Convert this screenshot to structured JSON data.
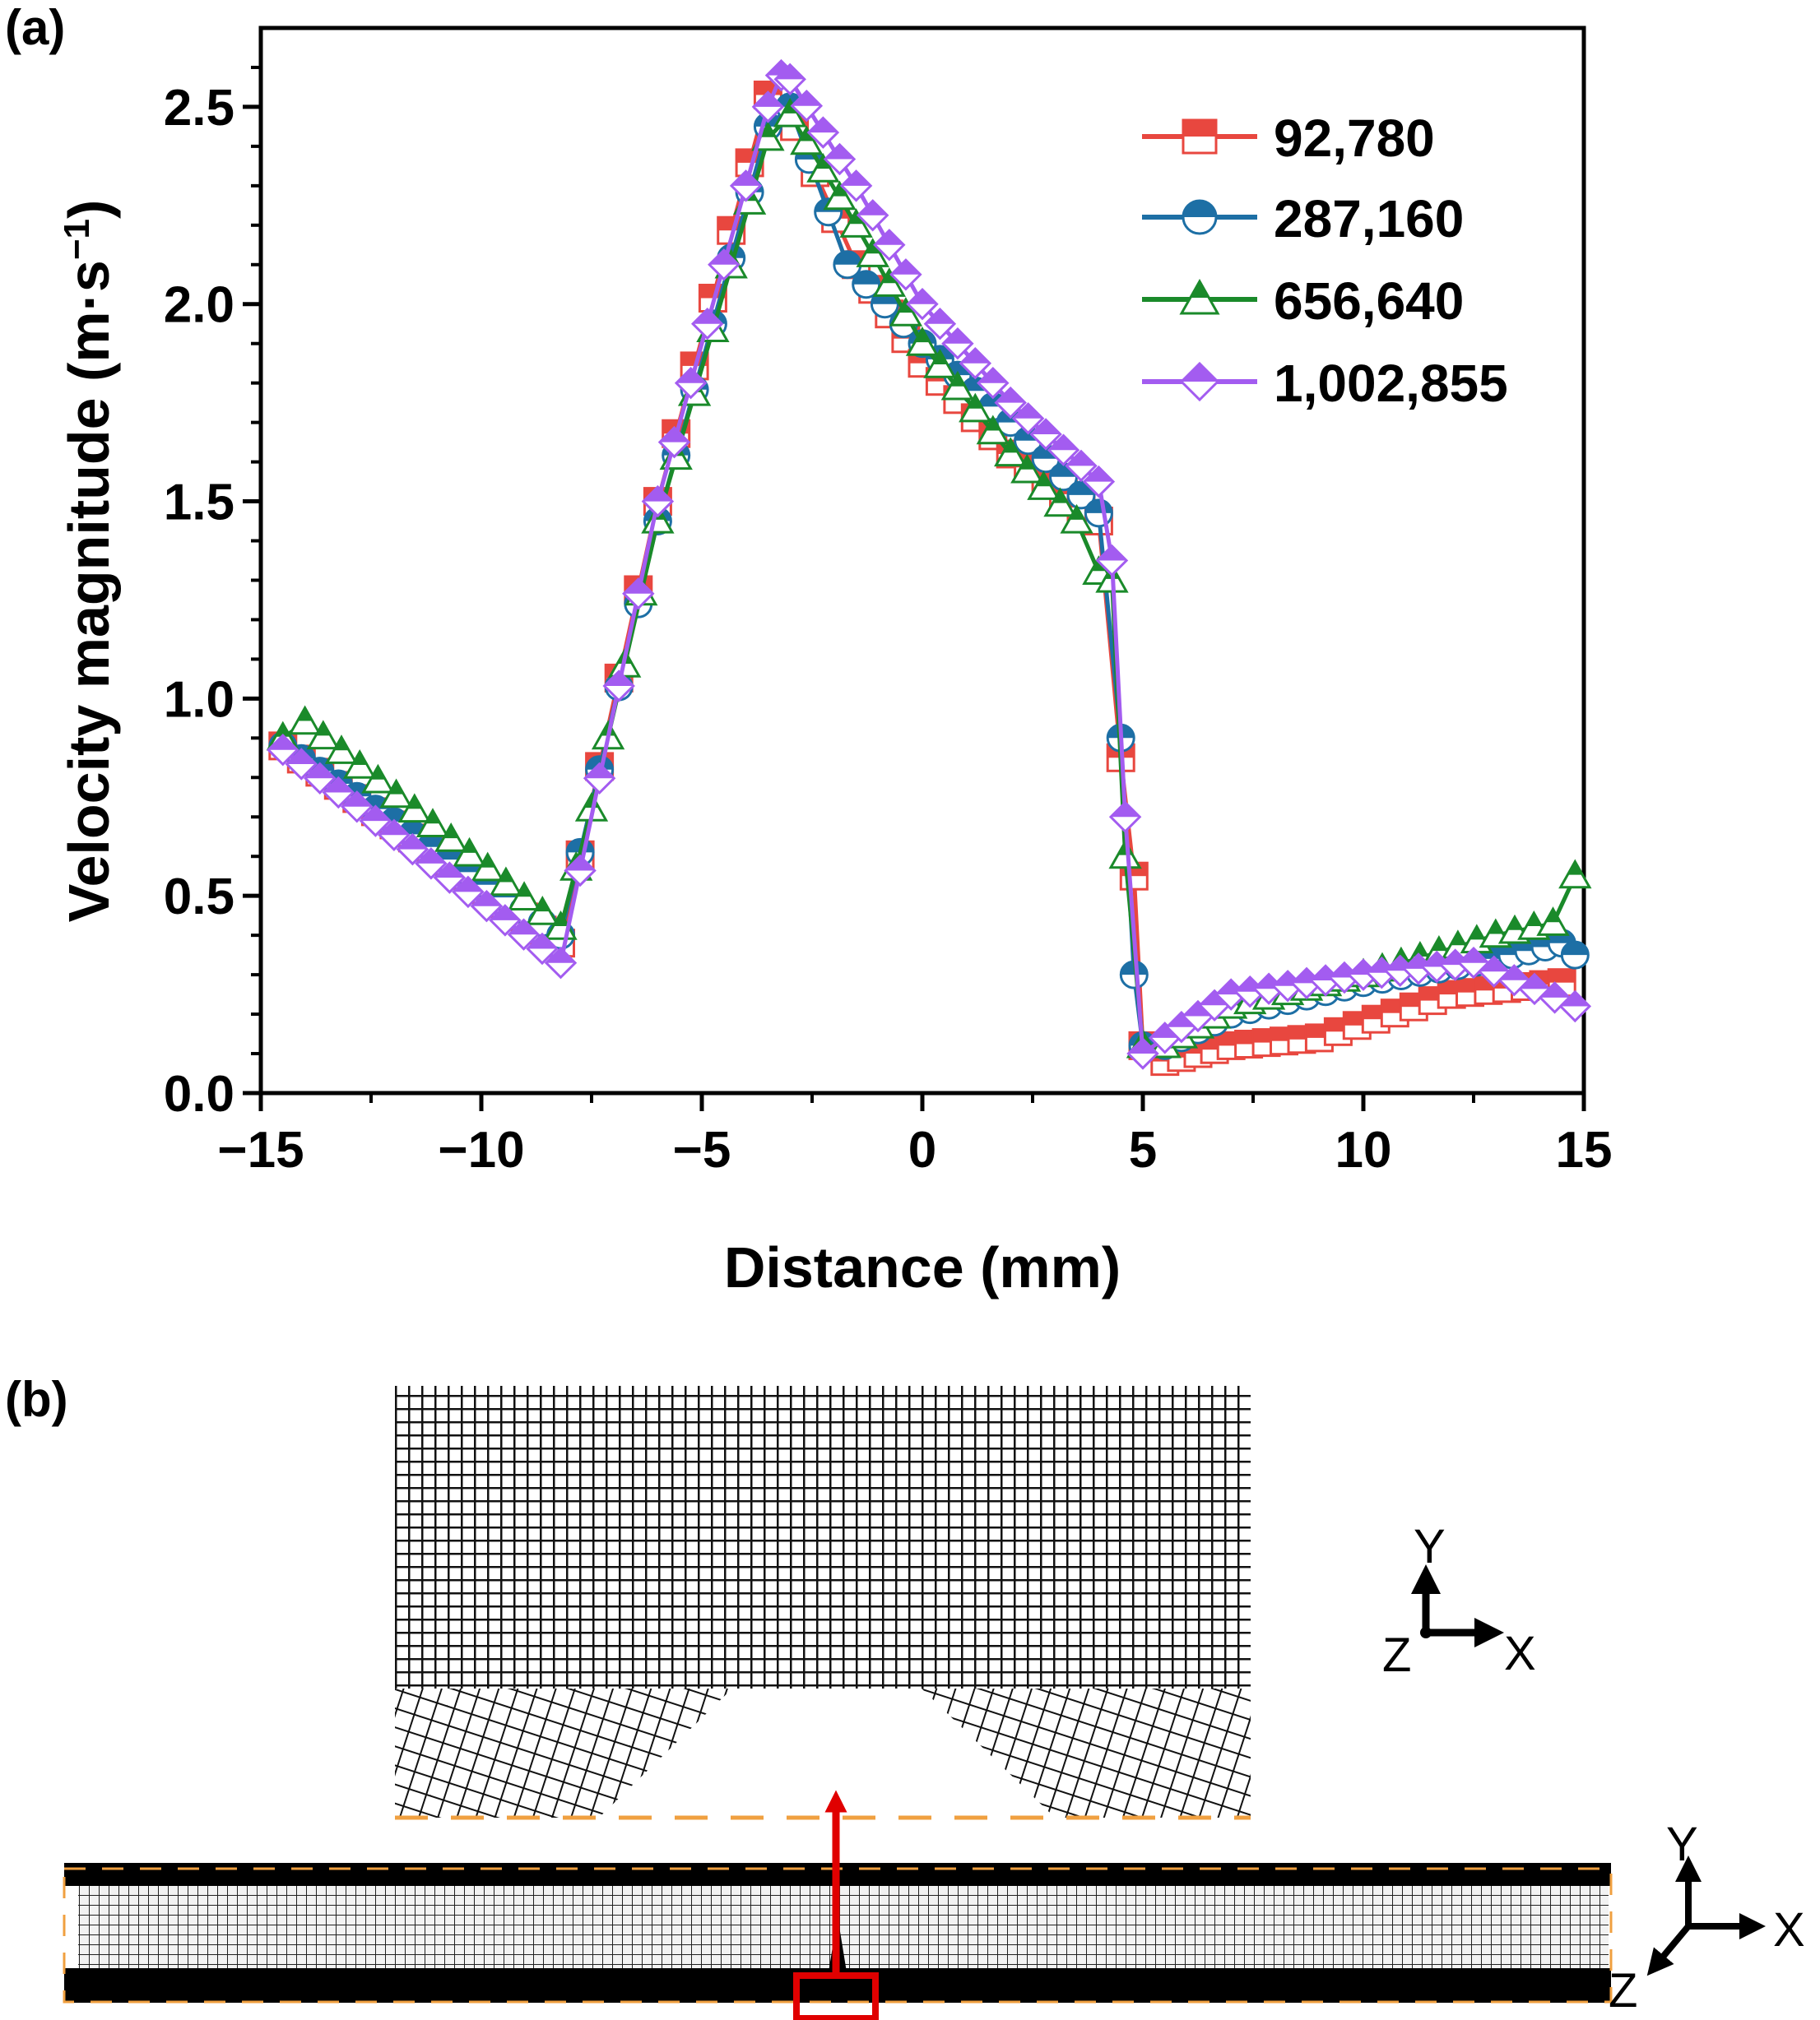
{
  "panel_a": {
    "label": "(a)"
  },
  "panel_b": {
    "label": "(b)",
    "axes_upper": {
      "y": "Y",
      "x": "X",
      "z": "Z"
    },
    "axes_lower": {
      "y": "Y",
      "x": "X",
      "z": "Z"
    },
    "colors": {
      "mesh": "#111111",
      "boundary": "#f0a040",
      "highlight": "#e00000"
    }
  },
  "chart_data": {
    "type": "line",
    "xlabel": "Distance (mm)",
    "ylabel_main": "Velocity magnitude (m·s",
    "ylabel_sup": "−1",
    "ylabel_close": ")",
    "xlim": [
      -15,
      15
    ],
    "ylim": [
      0,
      2.7
    ],
    "xticks": [
      -15,
      -10,
      -5,
      0,
      5,
      10,
      15
    ],
    "xtick_labels": [
      "−15",
      "−10",
      "−5",
      "0",
      "5",
      "10",
      "15"
    ],
    "yticks": [
      0.0,
      0.5,
      1.0,
      1.5,
      2.0,
      2.5
    ],
    "ytick_labels": [
      "0.0",
      "0.5",
      "1.0",
      "1.5",
      "2.0",
      "2.5"
    ],
    "legend_position": "top-right",
    "series": [
      {
        "name": "92,780",
        "color": "#e8473f",
        "marker": "square",
        "x": [
          -14.5,
          -8.2,
          -6.0,
          -3.5,
          -2.9,
          -1.5,
          0,
          2,
          4,
          4.5,
          4.8,
          5.0,
          5.5,
          7,
          9,
          12,
          14.5
        ],
        "y": [
          0.88,
          0.38,
          1.5,
          2.53,
          2.45,
          2.1,
          1.85,
          1.62,
          1.45,
          0.85,
          0.55,
          0.12,
          0.08,
          0.12,
          0.14,
          0.25,
          0.28
        ]
      },
      {
        "name": "287,160",
        "color": "#1d6fa5",
        "marker": "circle",
        "x": [
          -14.5,
          -8.2,
          -6.0,
          -3.5,
          -3.0,
          -1.7,
          0,
          2,
          4,
          4.5,
          4.8,
          5.0,
          5.5,
          7,
          10,
          13,
          14.5,
          14.8
        ],
        "y": [
          0.88,
          0.4,
          1.45,
          2.45,
          2.5,
          2.1,
          1.9,
          1.7,
          1.47,
          0.9,
          0.3,
          0.12,
          0.12,
          0.2,
          0.28,
          0.34,
          0.38,
          0.35
        ]
      },
      {
        "name": "656,640",
        "color": "#1a8a2a",
        "marker": "triangle",
        "x": [
          -14.5,
          -14,
          -8.2,
          -7.5,
          -6.0,
          -3.5,
          -3.0,
          -1.5,
          0,
          2,
          3.5,
          4.0,
          4.3,
          4.6,
          5.0,
          5.5,
          7,
          10,
          13,
          14.3,
          14.8
        ],
        "y": [
          0.9,
          0.94,
          0.42,
          0.72,
          1.45,
          2.42,
          2.48,
          2.2,
          1.9,
          1.62,
          1.45,
          1.32,
          1.3,
          0.6,
          0.12,
          0.12,
          0.22,
          0.3,
          0.4,
          0.43,
          0.55
        ]
      },
      {
        "name": "1,002,855",
        "color": "#a35cf0",
        "marker": "diamond",
        "x": [
          -14.5,
          -8.2,
          -6.0,
          -4.5,
          -3.5,
          -3.2,
          -3.0,
          -1.5,
          0,
          2,
          4.0,
          4.3,
          4.6,
          5.0,
          5.5,
          7,
          10,
          12.5,
          14.8
        ],
        "y": [
          0.87,
          0.33,
          1.5,
          2.1,
          2.5,
          2.58,
          2.57,
          2.3,
          2.0,
          1.75,
          1.55,
          1.35,
          0.7,
          0.1,
          0.14,
          0.25,
          0.3,
          0.33,
          0.22
        ]
      }
    ]
  }
}
